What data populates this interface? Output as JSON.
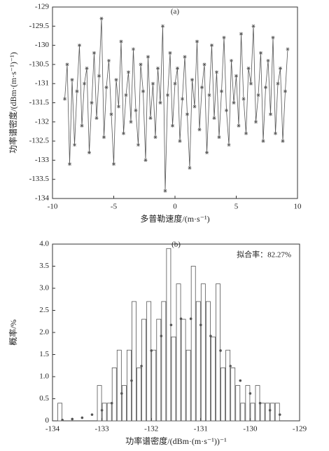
{
  "chart_data": [
    {
      "type": "line",
      "title": "(a)",
      "x_label": "多普勒速度/(m·s⁻¹)",
      "y_label": "功率谱密度/(dBm·(m·s⁻¹)⁻¹)",
      "color": "#555555",
      "x": [
        -9.0,
        -8.8,
        -8.6,
        -8.4,
        -8.2,
        -8.0,
        -7.8,
        -7.6,
        -7.4,
        -7.2,
        -7.0,
        -6.8,
        -6.6,
        -6.4,
        -6.2,
        -6.0,
        -5.8,
        -5.6,
        -5.4,
        -5.2,
        -5.0,
        -4.8,
        -4.6,
        -4.4,
        -4.2,
        -4.0,
        -3.8,
        -3.6,
        -3.4,
        -3.2,
        -3.0,
        -2.8,
        -2.6,
        -2.4,
        -2.2,
        -2.0,
        -1.8,
        -1.6,
        -1.4,
        -1.2,
        -1.0,
        -0.8,
        -0.6,
        -0.4,
        -0.2,
        0.0,
        0.2,
        0.4,
        0.6,
        0.8,
        1.0,
        1.2,
        1.4,
        1.6,
        1.8,
        2.0,
        2.2,
        2.4,
        2.6,
        2.8,
        3.0,
        3.2,
        3.4,
        3.6,
        3.8,
        4.0,
        4.2,
        4.4,
        4.6,
        4.8,
        5.0,
        5.2,
        5.4,
        5.6,
        5.8,
        6.0,
        6.2,
        6.4,
        6.6,
        6.8,
        7.0,
        7.2,
        7.4,
        7.6,
        7.8,
        8.0,
        8.2,
        8.4,
        8.6,
        8.8,
        9.0,
        9.2
      ],
      "values": [
        -131.4,
        -130.5,
        -133.1,
        -130.9,
        -132.6,
        -131.2,
        -130.0,
        -132.1,
        -131.0,
        -130.6,
        -132.8,
        -131.5,
        -130.2,
        -131.9,
        -130.8,
        -129.3,
        -132.4,
        -131.1,
        -130.4,
        -131.8,
        -133.1,
        -130.9,
        -131.6,
        -129.9,
        -132.3,
        -131.3,
        -130.7,
        -132.0,
        -130.1,
        -131.7,
        -132.6,
        -130.5,
        -131.2,
        -133.0,
        -130.3,
        -131.9,
        -131.0,
        -132.4,
        -130.6,
        -131.5,
        -129.5,
        -133.8,
        -131.3,
        -130.2,
        -132.1,
        -131.0,
        -130.6,
        -132.5,
        -131.4,
        -130.3,
        -131.8,
        -133.2,
        -130.9,
        -131.6,
        -129.9,
        -132.2,
        -131.1,
        -130.5,
        -132.8,
        -131.3,
        -130.0,
        -131.9,
        -130.7,
        -132.4,
        -131.2,
        -129.8,
        -131.7,
        -132.6,
        -130.4,
        -131.5,
        -130.8,
        -132.1,
        -129.7,
        -131.4,
        -132.3,
        -130.6,
        -131.0,
        -129.5,
        -132.0,
        -131.3,
        -130.2,
        -132.5,
        -131.1,
        -130.4,
        -131.8,
        -129.8,
        -132.3,
        -131.0,
        -130.6,
        -132.5,
        -131.2,
        -130.1
      ],
      "xlim": [
        -10,
        10
      ],
      "xticks": [
        -10,
        -5,
        0,
        5,
        10
      ],
      "ylim": [
        -134,
        -129
      ],
      "yticks": [
        -129,
        -129.5,
        -130,
        -130.5,
        -131,
        -131.5,
        -132,
        -132.5,
        -133,
        -133.5,
        -134
      ]
    },
    {
      "type": "histogram",
      "title": "(b)",
      "x_label": "功率谱密度/(dBm·(m·s⁻¹))⁻¹",
      "y_label": "概率/%",
      "annotation": "拟合率：82.27%",
      "color": "#ffffff",
      "edge_color": "#555555",
      "bins": [
        -133.9,
        -133.8,
        -133.7,
        -133.6,
        -133.5,
        -133.4,
        -133.3,
        -133.2,
        -133.1,
        -133.0,
        -132.9,
        -132.8,
        -132.7,
        -132.6,
        -132.5,
        -132.4,
        -132.3,
        -132.2,
        -132.1,
        -132.0,
        -131.9,
        -131.8,
        -131.7,
        -131.6,
        -131.5,
        -131.4,
        -131.3,
        -131.2,
        -131.1,
        -131.0,
        -130.9,
        -130.8,
        -130.7,
        -130.6,
        -130.5,
        -130.4,
        -130.3,
        -130.2,
        -130.1,
        -130.0,
        -129.9,
        -129.8,
        -129.7,
        -129.6,
        -129.5,
        -129.4
      ],
      "values": [
        0.4,
        0,
        0,
        0,
        0,
        0,
        0,
        0,
        0.8,
        0.4,
        0.4,
        1.2,
        1.6,
        0.8,
        1.6,
        2.7,
        1.2,
        2.3,
        2.7,
        1.6,
        2.3,
        2.7,
        3.9,
        1.9,
        3.1,
        2.3,
        1.6,
        3.5,
        2.7,
        3.1,
        2.7,
        1.9,
        3.1,
        1.2,
        1.6,
        1.2,
        0.8,
        0.4,
        0.8,
        0.4,
        0.8,
        0.4,
        0.4,
        0.4,
        0.4
      ],
      "fit": {
        "color": "#555555",
        "x": [
          -133.8,
          -133.6,
          -133.4,
          -133.2,
          -133.0,
          -132.8,
          -132.6,
          -132.4,
          -132.2,
          -132.0,
          -131.8,
          -131.6,
          -131.4,
          -131.2,
          -131.0,
          -130.8,
          -130.6,
          -130.4,
          -130.2,
          -130.0,
          -129.8,
          -129.6,
          -129.4
        ],
        "values": [
          0.02,
          0.04,
          0.07,
          0.14,
          0.24,
          0.4,
          0.62,
          0.91,
          1.24,
          1.59,
          1.92,
          2.17,
          2.31,
          2.31,
          2.17,
          1.92,
          1.59,
          1.24,
          0.91,
          0.62,
          0.4,
          0.24,
          0.14
        ]
      },
      "xlim": [
        -134,
        -129
      ],
      "xticks": [
        -134,
        -133,
        -132,
        -131,
        -130,
        -129
      ],
      "ylim": [
        0,
        4.0
      ],
      "yticks": [
        0,
        0.5,
        {
          "value": 1,
          "label": "1.0"
        },
        1.5,
        {
          "value": 2,
          "label": "2.0"
        },
        2.5,
        {
          "value": 3,
          "label": "3.0"
        },
        3.5,
        {
          "value": 4,
          "label": "4.0"
        }
      ]
    }
  ]
}
